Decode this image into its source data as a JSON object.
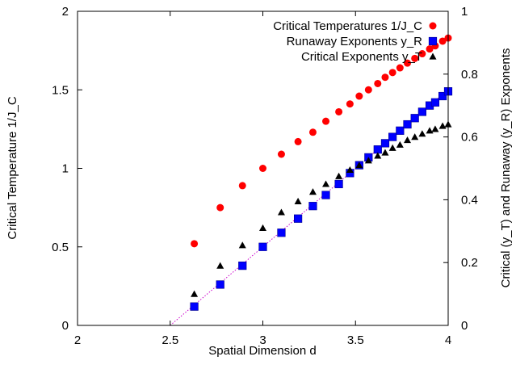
{
  "chart_data": {
    "type": "scatter",
    "xlabel": "Spatial Dimension d",
    "ylabel_left": "Critical Temperature 1/J_C",
    "ylabel_right": "Critical (y_T) and Runaway (y_R) Exponents",
    "xlim": [
      2,
      4
    ],
    "ylim_left": [
      0,
      2
    ],
    "ylim_right": [
      0,
      1
    ],
    "xticks": [
      "2",
      "2.5",
      "3",
      "3.5",
      "4"
    ],
    "yticks_left": [
      "0",
      "0.5",
      "1",
      "1.5",
      "2"
    ],
    "yticks_right": [
      "0",
      "0.2",
      "0.4",
      "0.6",
      "0.8",
      "1"
    ],
    "legend_position": "top-right",
    "series": [
      {
        "name": "Critical Temperatures 1/J_C",
        "axis": "left",
        "marker": "circle",
        "color": "#ff0000",
        "x": [
          2.63,
          2.77,
          2.89,
          3.0,
          3.1,
          3.19,
          3.27,
          3.34,
          3.41,
          3.47,
          3.52,
          3.57,
          3.62,
          3.66,
          3.7,
          3.74,
          3.78,
          3.82,
          3.86,
          3.9,
          3.93,
          3.97,
          4.0
        ],
        "y": [
          0.52,
          0.75,
          0.89,
          1.0,
          1.09,
          1.17,
          1.23,
          1.3,
          1.36,
          1.41,
          1.46,
          1.5,
          1.54,
          1.58,
          1.61,
          1.64,
          1.67,
          1.7,
          1.73,
          1.76,
          1.78,
          1.81,
          1.83
        ]
      },
      {
        "name": "Runaway Exponents y_R",
        "axis": "right",
        "marker": "square",
        "color": "#0000ff",
        "x": [
          2.63,
          2.77,
          2.89,
          3.0,
          3.1,
          3.19,
          3.27,
          3.34,
          3.41,
          3.47,
          3.52,
          3.57,
          3.62,
          3.66,
          3.7,
          3.74,
          3.78,
          3.82,
          3.86,
          3.9,
          3.93,
          3.97,
          4.0
        ],
        "y": [
          0.06,
          0.13,
          0.19,
          0.25,
          0.295,
          0.34,
          0.38,
          0.415,
          0.45,
          0.485,
          0.51,
          0.535,
          0.56,
          0.58,
          0.6,
          0.62,
          0.64,
          0.66,
          0.68,
          0.7,
          0.71,
          0.73,
          0.745
        ]
      },
      {
        "name": "Critical Exponents y_T",
        "axis": "right",
        "marker": "triangle",
        "color": "#000000",
        "x": [
          2.63,
          2.77,
          2.89,
          3.0,
          3.1,
          3.19,
          3.27,
          3.34,
          3.41,
          3.47,
          3.52,
          3.57,
          3.62,
          3.66,
          3.7,
          3.74,
          3.78,
          3.82,
          3.86,
          3.9,
          3.93,
          3.97,
          4.0
        ],
        "y": [
          0.1,
          0.19,
          0.255,
          0.31,
          0.36,
          0.395,
          0.425,
          0.45,
          0.475,
          0.495,
          0.51,
          0.525,
          0.54,
          0.55,
          0.565,
          0.575,
          0.59,
          0.6,
          0.61,
          0.62,
          0.625,
          0.635,
          0.64
        ]
      }
    ],
    "reference_line": {
      "axis": "right",
      "color": "#cc00cc",
      "style": "dotted",
      "x": [
        2.5,
        4.0
      ],
      "y": [
        0.0,
        0.75
      ]
    }
  }
}
